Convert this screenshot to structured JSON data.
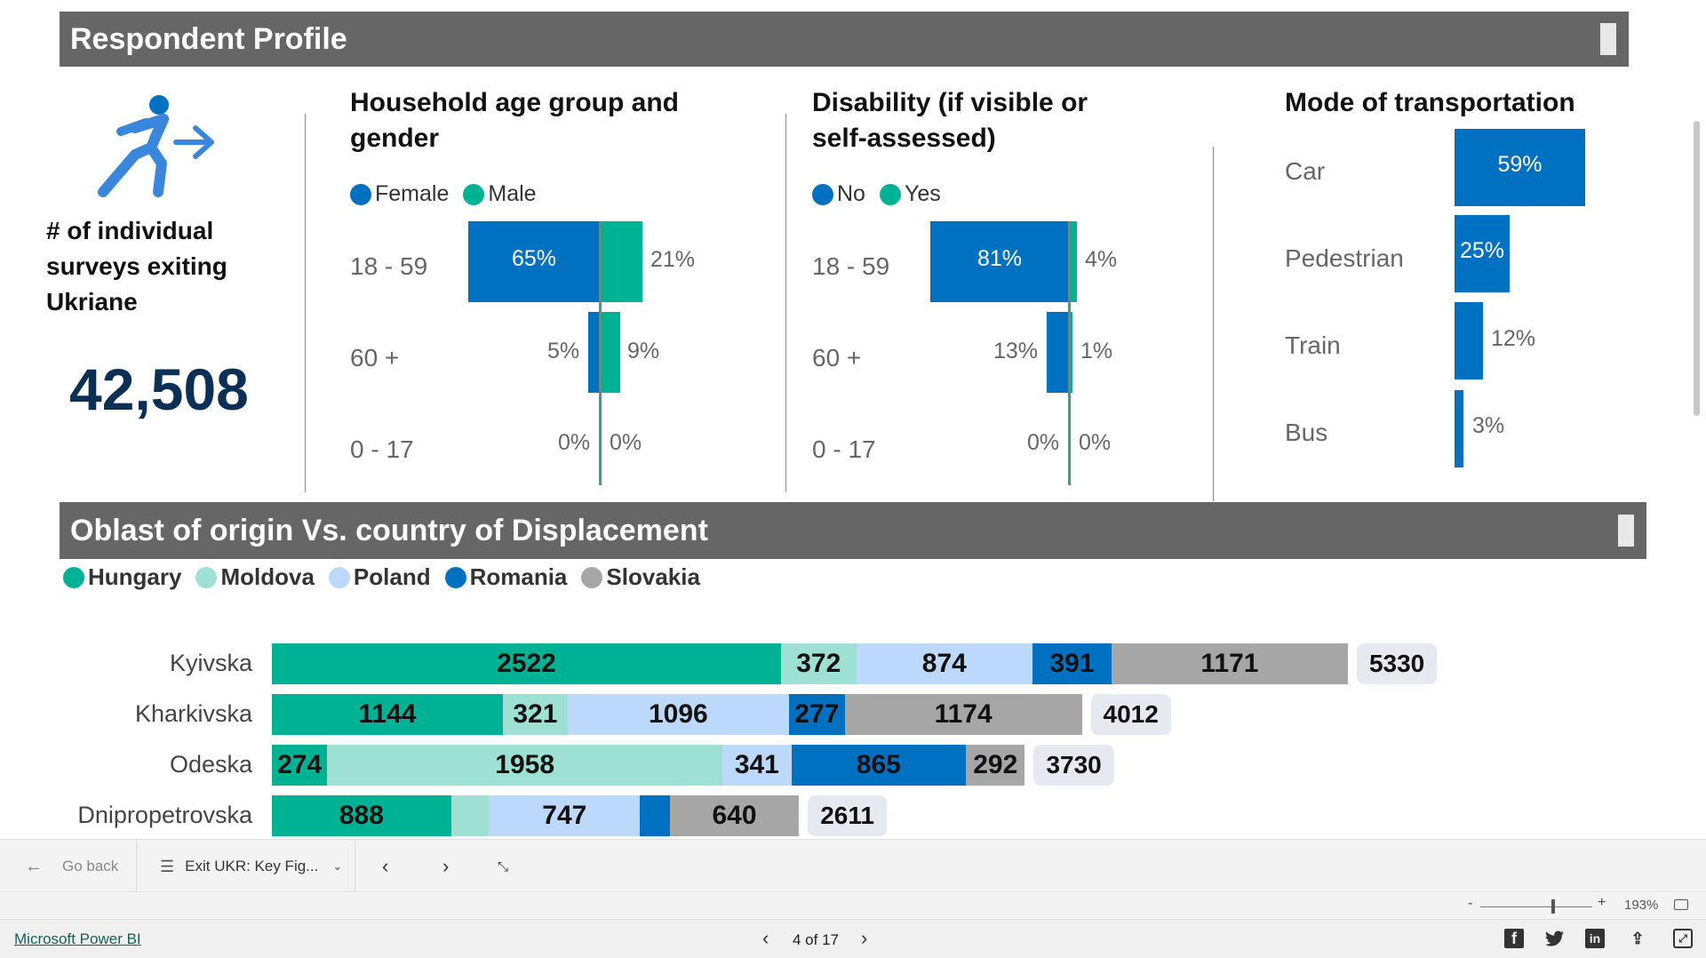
{
  "header": {
    "title": "Respondent Profile"
  },
  "kpi": {
    "label": "# of individual surveys exiting Ukriane",
    "value": "42,508",
    "icon": "person-exiting-icon"
  },
  "age_gender": {
    "title": "Household age group and gender",
    "legend": [
      "Female",
      "Male"
    ],
    "rows": [
      {
        "label": "18 - 59",
        "female": "65%",
        "male": "21%"
      },
      {
        "label": "60 +",
        "female": "5%",
        "male": "9%"
      },
      {
        "label": "0 - 17",
        "female": "0%",
        "male": "0%"
      }
    ]
  },
  "disability": {
    "title": "Disability (if visible or self-assessed)",
    "legend": [
      "No",
      "Yes"
    ],
    "rows": [
      {
        "label": "18 - 59",
        "no": "81%",
        "yes": "4%"
      },
      {
        "label": "60 +",
        "no": "13%",
        "yes": "1%"
      },
      {
        "label": "0 - 17",
        "no": "0%",
        "yes": "0%"
      }
    ]
  },
  "transport": {
    "title": "Mode of transportation",
    "rows": [
      {
        "label": "Car",
        "value": "59%"
      },
      {
        "label": "Pedestrian",
        "value": "25%"
      },
      {
        "label": "Train",
        "value": "12%"
      },
      {
        "label": "Bus",
        "value": "3%"
      }
    ]
  },
  "oblast": {
    "title": "Oblast of origin Vs. country of Displacement",
    "legend": [
      "Hungary",
      "Moldova",
      "Poland",
      "Romania",
      "Slovakia"
    ]
  },
  "chart_data": {
    "type": "bar",
    "categories": [
      "Kyivska",
      "Kharkivska",
      "Odeska",
      "Dnipropetrovska"
    ],
    "series": [
      {
        "name": "Hungary",
        "values": [
          2522,
          1144,
          274,
          888
        ]
      },
      {
        "name": "Moldova",
        "values": [
          372,
          321,
          1958,
          188
        ]
      },
      {
        "name": "Poland",
        "values": [
          874,
          1096,
          341,
          747
        ]
      },
      {
        "name": "Romania",
        "values": [
          391,
          277,
          865,
          148
        ]
      },
      {
        "name": "Slovakia",
        "values": [
          1171,
          1174,
          292,
          640
        ]
      }
    ],
    "totals": [
      "5330",
      "4012",
      "3730",
      "2611"
    ]
  },
  "colors": {
    "hungary": "#00b294",
    "moldova": "#9ee0d4",
    "poland": "#bcd8fb",
    "romania": "#0070c0",
    "slovakia": "#a6a6a6",
    "blue": "#0070c0",
    "teal": "#00b294"
  },
  "toolbar": {
    "back": "Go back",
    "page_menu": "Exit UKR: Key Fig...",
    "zoom": "193%"
  },
  "footer": {
    "brand": "Microsoft Power BI",
    "page": "4 of 17"
  }
}
